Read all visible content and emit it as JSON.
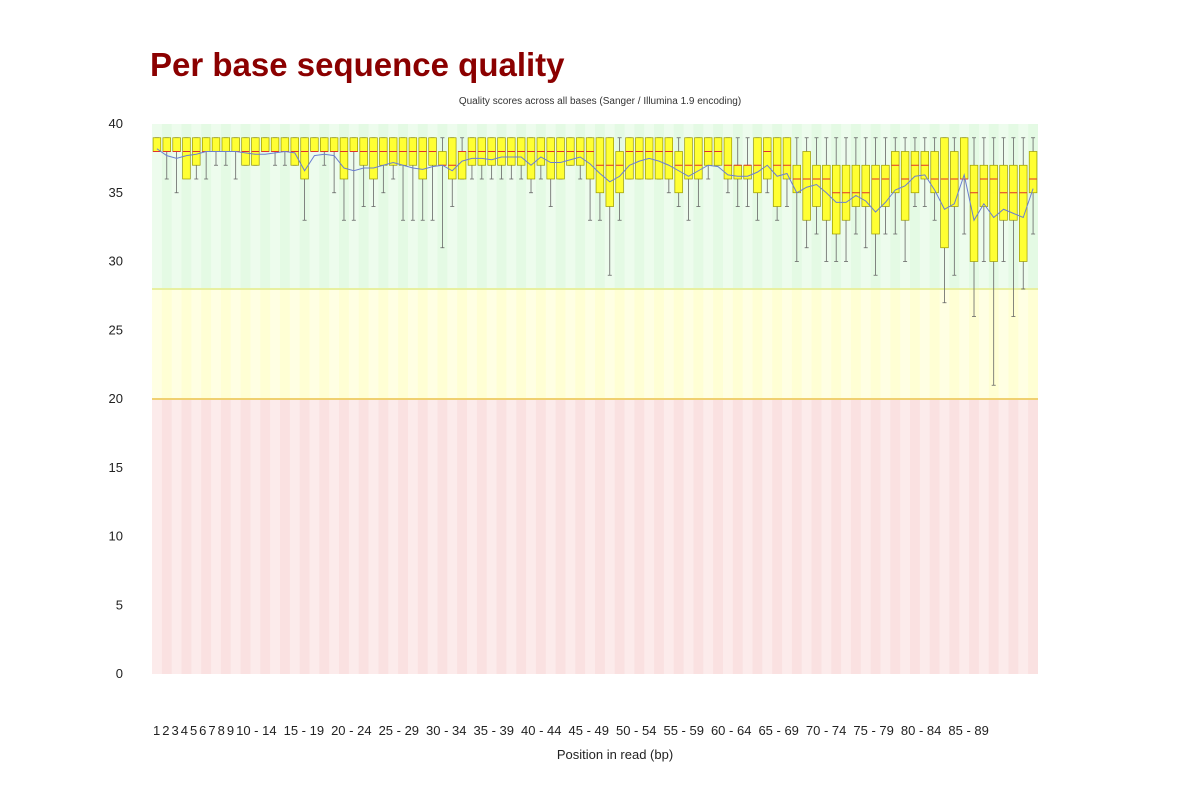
{
  "page": {
    "title": "Per base sequence quality"
  },
  "chart_data": {
    "type": "box",
    "title": "Quality scores across all bases (Sanger / Illumina 1.9 encoding)",
    "xlabel": "Position in read (bp)",
    "ylabel": "",
    "ylim": [
      0,
      40
    ],
    "yticks": [
      0,
      5,
      10,
      15,
      20,
      25,
      30,
      35,
      40
    ],
    "grid": false,
    "legend": "none",
    "zones": [
      {
        "from": 28,
        "to": 40,
        "color": "#cdf5cd"
      },
      {
        "from": 20,
        "to": 28,
        "color": "#ffffb0"
      },
      {
        "from": 0,
        "to": 20,
        "color": "#f5c8c8"
      }
    ],
    "colors": {
      "box": "#ffff33",
      "box_stroke": "#999900",
      "median": "#e03030",
      "mean_line": "#6b7fd1",
      "whisker": "#666666",
      "title": "#8b0000"
    },
    "x_ticks": [
      "1",
      "2",
      "3",
      "4",
      "5",
      "6",
      "7",
      "8",
      "9",
      "10 - 14",
      "15 - 19",
      "20 - 24",
      "25 - 29",
      "30 - 34",
      "35 - 39",
      "40 - 44",
      "45 - 49",
      "50 - 54",
      "55 - 59",
      "60 - 64",
      "65 - 69",
      "70 - 74",
      "75 - 79",
      "80 - 84",
      "85 - 89"
    ],
    "positions": [
      "1",
      "2",
      "3",
      "4",
      "5",
      "6",
      "7",
      "8",
      "9",
      "10",
      "11",
      "12",
      "13",
      "14",
      "15",
      "16",
      "17",
      "18",
      "19",
      "20",
      "21",
      "22",
      "23",
      "24",
      "25",
      "26",
      "27",
      "28",
      "29",
      "30",
      "31",
      "32",
      "33",
      "34",
      "35",
      "36",
      "37",
      "38",
      "39",
      "40",
      "41",
      "42",
      "43",
      "44",
      "45",
      "46",
      "47",
      "48",
      "49",
      "50",
      "51",
      "52",
      "53",
      "54",
      "55",
      "56",
      "57",
      "58",
      "59",
      "60",
      "61",
      "62",
      "63",
      "64",
      "65",
      "66",
      "67",
      "68",
      "69",
      "70",
      "71",
      "72",
      "73",
      "74",
      "75",
      "76",
      "77",
      "78",
      "79",
      "80",
      "81",
      "82",
      "83",
      "84",
      "85",
      "86",
      "87",
      "88",
      "89",
      "90"
    ],
    "lower_whisker": [
      38,
      36,
      35,
      37,
      36,
      36,
      37,
      37,
      36,
      37,
      37,
      38,
      37,
      37,
      37,
      33,
      38,
      37,
      35,
      33,
      33,
      34,
      34,
      35,
      36,
      33,
      33,
      33,
      33,
      31,
      34,
      36,
      36,
      36,
      36,
      36,
      36,
      36,
      35,
      36,
      34,
      36,
      37,
      36,
      33,
      33,
      29,
      33,
      36,
      36,
      36,
      36,
      35,
      34,
      33,
      34,
      36,
      37,
      35,
      34,
      34,
      33,
      35,
      33,
      34,
      30,
      31,
      32,
      30,
      30,
      30,
      32,
      31,
      29,
      32,
      32,
      30,
      34,
      34,
      33,
      27,
      29,
      32,
      26,
      30,
      21,
      30,
      26,
      28,
      32
    ],
    "q1": [
      38,
      38,
      38,
      36,
      37,
      38,
      38,
      38,
      38,
      37,
      37,
      38,
      38,
      38,
      37,
      36,
      38,
      38,
      38,
      36,
      38,
      37,
      36,
      37,
      37,
      37,
      37,
      36,
      37,
      37,
      36,
      36,
      37,
      37,
      37,
      37,
      37,
      37,
      36,
      37,
      36,
      36,
      37,
      37,
      36,
      35,
      34,
      35,
      36,
      36,
      36,
      36,
      36,
      35,
      36,
      36,
      37,
      37,
      36,
      36,
      36,
      35,
      36,
      34,
      36,
      35,
      33,
      34,
      33,
      32,
      33,
      34,
      34,
      32,
      34,
      35,
      33,
      35,
      36,
      35,
      31,
      34,
      36,
      30,
      34,
      30,
      33,
      33,
      30,
      35
    ],
    "median": [
      38,
      38,
      38,
      38,
      38,
      38,
      38,
      38,
      38,
      38,
      38,
      38,
      38,
      38,
      38,
      38,
      38,
      38,
      38,
      38,
      38,
      38,
      38,
      38,
      38,
      38,
      38,
      38,
      38,
      37,
      37,
      38,
      38,
      38,
      38,
      38,
      38,
      38,
      38,
      38,
      38,
      38,
      38,
      38,
      38,
      37,
      37,
      37,
      38,
      38,
      38,
      38,
      38,
      37,
      37,
      37,
      38,
      38,
      37,
      37,
      37,
      37,
      38,
      37,
      37,
      36,
      36,
      36,
      36,
      35,
      35,
      35,
      35,
      36,
      36,
      37,
      36,
      37,
      37,
      36,
      36,
      36,
      36,
      35,
      36,
      36,
      35,
      35,
      35,
      36
    ],
    "q3": [
      39,
      39,
      39,
      39,
      39,
      39,
      39,
      39,
      39,
      39,
      39,
      39,
      39,
      39,
      39,
      39,
      39,
      39,
      39,
      39,
      39,
      39,
      39,
      39,
      39,
      39,
      39,
      39,
      39,
      38,
      39,
      38,
      39,
      39,
      39,
      39,
      39,
      39,
      39,
      39,
      39,
      39,
      39,
      39,
      39,
      39,
      39,
      38,
      39,
      39,
      39,
      39,
      39,
      38,
      39,
      39,
      39,
      39,
      39,
      37,
      37,
      39,
      39,
      39,
      39,
      37,
      38,
      37,
      37,
      37,
      37,
      37,
      37,
      37,
      37,
      38,
      38,
      38,
      38,
      38,
      39,
      38,
      39,
      37,
      37,
      37,
      37,
      37,
      37,
      38
    ],
    "upper_whisker": [
      39,
      39,
      39,
      39,
      39,
      39,
      39,
      39,
      39,
      39,
      39,
      39,
      39,
      39,
      39,
      39,
      39,
      39,
      39,
      39,
      39,
      39,
      39,
      39,
      39,
      39,
      39,
      39,
      39,
      39,
      39,
      39,
      39,
      39,
      39,
      39,
      39,
      39,
      39,
      39,
      39,
      39,
      39,
      39,
      39,
      39,
      39,
      39,
      39,
      39,
      39,
      39,
      39,
      39,
      39,
      39,
      39,
      39,
      39,
      39,
      39,
      39,
      39,
      39,
      39,
      39,
      39,
      39,
      39,
      39,
      39,
      39,
      39,
      39,
      39,
      39,
      39,
      39,
      39,
      39,
      39,
      39,
      39,
      39,
      39,
      39,
      39,
      39,
      39,
      39
    ],
    "mean": [
      38.2,
      37.7,
      37.5,
      37.7,
      37.8,
      38.0,
      38.0,
      38.0,
      38.0,
      37.9,
      37.8,
      37.8,
      37.9,
      38.0,
      37.9,
      36.6,
      37.7,
      37.8,
      37.7,
      36.8,
      36.6,
      36.8,
      36.8,
      37.0,
      37.2,
      37.0,
      36.8,
      36.7,
      36.9,
      37.0,
      36.6,
      37.3,
      37.5,
      37.5,
      37.4,
      37.6,
      37.6,
      37.6,
      37.0,
      37.6,
      37.2,
      37.2,
      37.4,
      37.6,
      37.1,
      36.4,
      35.8,
      36.2,
      37.0,
      37.3,
      37.5,
      37.3,
      37.0,
      36.6,
      36.2,
      36.6,
      37.0,
      36.9,
      36.3,
      36.2,
      36.2,
      36.5,
      37.0,
      36.2,
      36.4,
      35.0,
      35.4,
      35.6,
      35.0,
      34.3,
      34.3,
      34.8,
      34.4,
      33.6,
      34.3,
      35.2,
      35.5,
      36.2,
      36.3,
      35.2,
      33.8,
      34.2,
      36.3,
      33.0,
      34.2,
      33.2,
      33.8,
      33.5,
      33.2,
      35.3
    ]
  }
}
